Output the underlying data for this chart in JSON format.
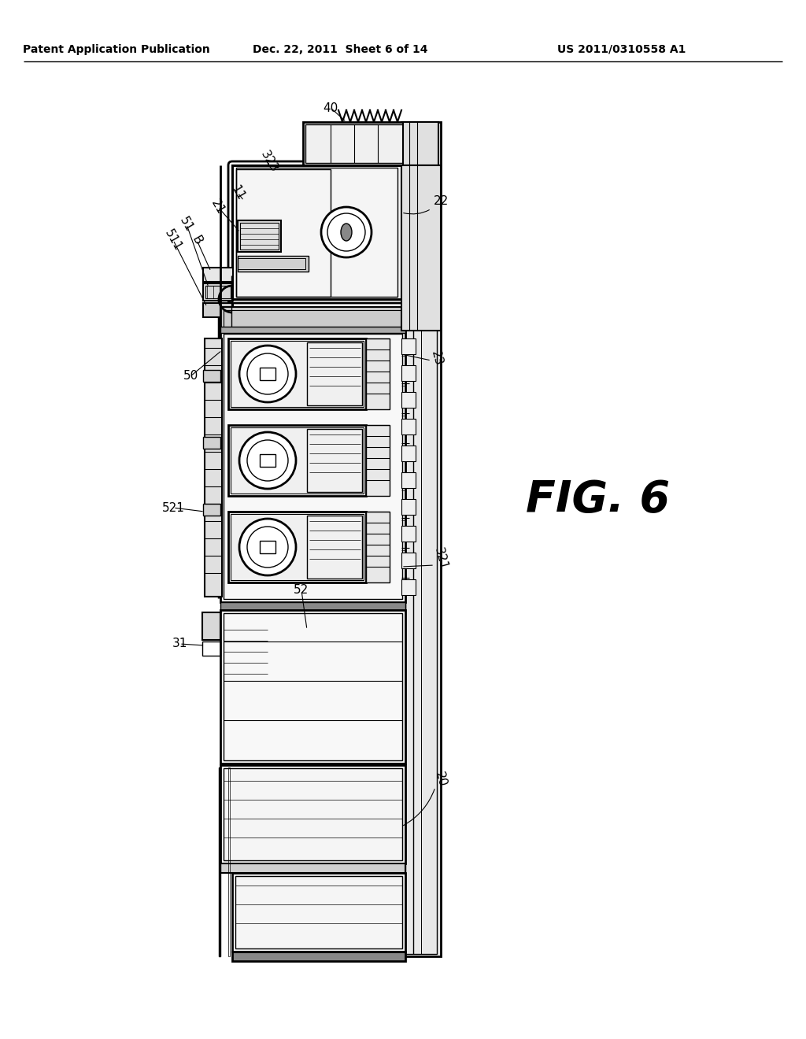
{
  "header_left": "Patent Application Publication",
  "header_mid": "Dec. 22, 2011  Sheet 6 of 14",
  "header_right": "US 2011/0310558 A1",
  "fig_label": "FIG. 6",
  "bg_color": "#ffffff",
  "lc": "#000000",
  "gray_light": "#d8d8d8",
  "gray_mid": "#aaaaaa",
  "gray_dark": "#666666"
}
